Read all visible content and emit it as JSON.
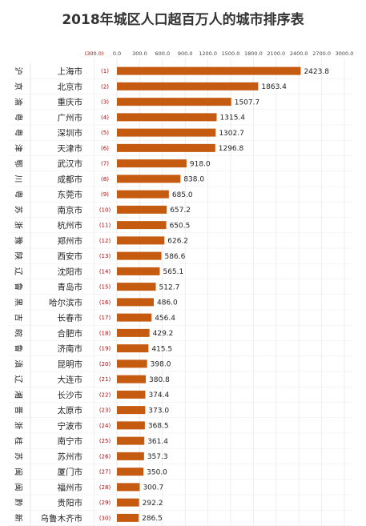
{
  "title": "2018年城区人口超百万人的城市排序表",
  "chart_data": {
    "type": "bar",
    "orientation": "horizontal",
    "title": "2018年城区人口超百万人的城市排序表",
    "xlim": [
      -300,
      3000
    ],
    "x_ticks": [
      "(300.0)",
      "0.0",
      "300.0",
      "600.0",
      "900.0",
      "1200.0",
      "1500.0",
      "1800.0",
      "2100.0",
      "2400.0",
      "2700.0",
      "3000.0"
    ],
    "grid": true,
    "bar_color": "#c55a11",
    "rows": [
      {
        "abbr": "沪",
        "city": "上海市",
        "rank": "(1)",
        "value": 2423.8,
        "label": "2423.8"
      },
      {
        "abbr": "京",
        "city": "北京市",
        "rank": "(2)",
        "value": 1863.4,
        "label": "1863.4"
      },
      {
        "abbr": "渝",
        "city": "重庆市",
        "rank": "(3)",
        "value": 1507.7,
        "label": "1507.7"
      },
      {
        "abbr": "粤",
        "city": "广州市",
        "rank": "(4)",
        "value": 1315.4,
        "label": "1315.4"
      },
      {
        "abbr": "粤",
        "city": "深圳市",
        "rank": "(5)",
        "value": 1302.7,
        "label": "1302.7"
      },
      {
        "abbr": "津",
        "city": "天津市",
        "rank": "(6)",
        "value": 1296.8,
        "label": "1296.8"
      },
      {
        "abbr": "鄂",
        "city": "武汉市",
        "rank": "(7)",
        "value": 918.0,
        "label": "918.0"
      },
      {
        "abbr": "川",
        "city": "成都市",
        "rank": "(8)",
        "value": 838.0,
        "label": "838.0"
      },
      {
        "abbr": "粤",
        "city": "东莞市",
        "rank": "(9)",
        "value": 685.0,
        "label": "685.0"
      },
      {
        "abbr": "苏",
        "city": "南京市",
        "rank": "(10)",
        "value": 657.2,
        "label": "657.2"
      },
      {
        "abbr": "浙",
        "city": "杭州市",
        "rank": "(11)",
        "value": 650.5,
        "label": "650.5"
      },
      {
        "abbr": "豫",
        "city": "郑州市",
        "rank": "(12)",
        "value": 626.2,
        "label": "626.2"
      },
      {
        "abbr": "陕",
        "city": "西安市",
        "rank": "(13)",
        "value": 586.6,
        "label": "586.6"
      },
      {
        "abbr": "辽",
        "city": "沈阳市",
        "rank": "(14)",
        "value": 565.1,
        "label": "565.1"
      },
      {
        "abbr": "鲁",
        "city": "青岛市",
        "rank": "(15)",
        "value": 512.7,
        "label": "512.7"
      },
      {
        "abbr": "黑",
        "city": "哈尔滨市",
        "rank": "(16)",
        "value": 486.0,
        "label": "486.0"
      },
      {
        "abbr": "吉",
        "city": "长春市",
        "rank": "(17)",
        "value": 456.4,
        "label": "456.4"
      },
      {
        "abbr": "皖",
        "city": "合肥市",
        "rank": "(18)",
        "value": 429.2,
        "label": "429.2"
      },
      {
        "abbr": "鲁",
        "city": "济南市",
        "rank": "(19)",
        "value": 415.5,
        "label": "415.5"
      },
      {
        "abbr": "滇",
        "city": "昆明市",
        "rank": "(20)",
        "value": 398.0,
        "label": "398.0"
      },
      {
        "abbr": "辽",
        "city": "大连市",
        "rank": "(21)",
        "value": 380.8,
        "label": "380.8"
      },
      {
        "abbr": "湘",
        "city": "长沙市",
        "rank": "(22)",
        "value": 374.4,
        "label": "374.4"
      },
      {
        "abbr": "晋",
        "city": "太原市",
        "rank": "(23)",
        "value": 373.0,
        "label": "373.0"
      },
      {
        "abbr": "浙",
        "city": "宁波市",
        "rank": "(24)",
        "value": 368.5,
        "label": "368.5"
      },
      {
        "abbr": "桂",
        "city": "南宁市",
        "rank": "(25)",
        "value": 361.4,
        "label": "361.4"
      },
      {
        "abbr": "苏",
        "city": "苏州市",
        "rank": "(26)",
        "value": 357.3,
        "label": "357.3"
      },
      {
        "abbr": "闽",
        "city": "厦门市",
        "rank": "(27)",
        "value": 350.0,
        "label": "350.0"
      },
      {
        "abbr": "闽",
        "city": "福州市",
        "rank": "(28)",
        "value": 300.7,
        "label": "300.7"
      },
      {
        "abbr": "黔",
        "city": "贵阳市",
        "rank": "(29)",
        "value": 292.2,
        "label": "292.2"
      },
      {
        "abbr": "新",
        "city": "乌鲁木齐市",
        "rank": "(30)",
        "value": 286.5,
        "label": "286.5"
      }
    ]
  }
}
